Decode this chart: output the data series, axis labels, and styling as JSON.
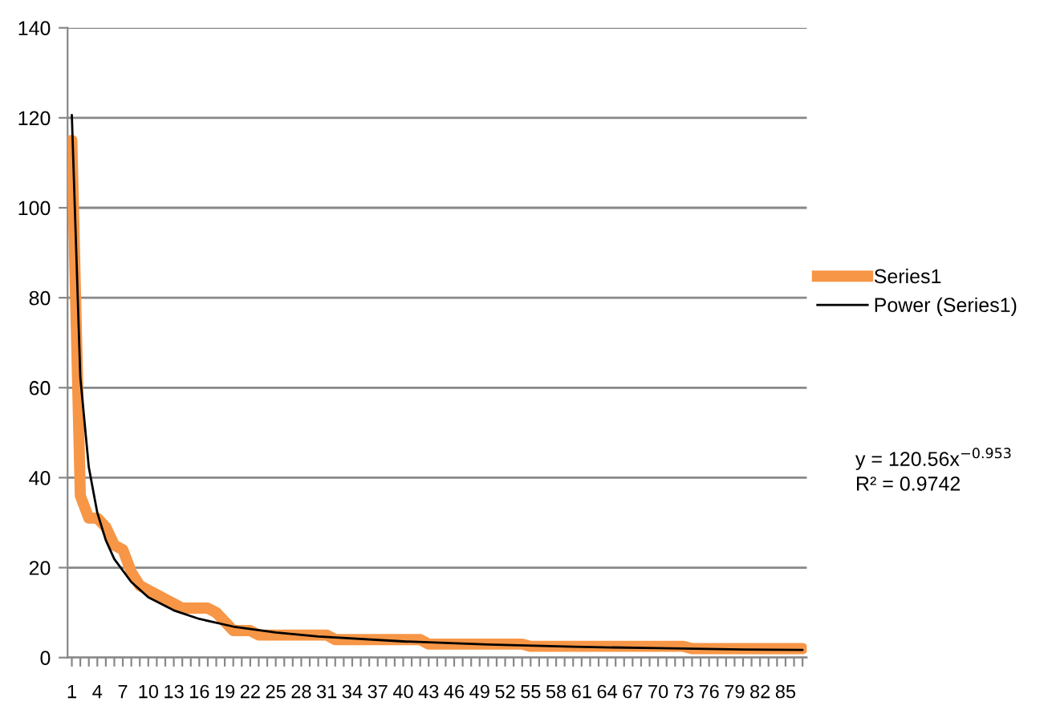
{
  "chart_data": {
    "type": "line",
    "x": [
      1,
      2,
      3,
      4,
      5,
      6,
      7,
      8,
      9,
      10,
      11,
      12,
      13,
      14,
      15,
      16,
      17,
      18,
      19,
      20,
      21,
      22,
      23,
      24,
      25,
      26,
      27,
      28,
      29,
      30,
      31,
      32,
      33,
      34,
      35,
      36,
      37,
      38,
      39,
      40,
      41,
      42,
      43,
      44,
      45,
      46,
      47,
      48,
      49,
      50,
      51,
      52,
      53,
      54,
      55,
      56,
      57,
      58,
      59,
      60,
      61,
      62,
      63,
      64,
      65,
      66,
      67,
      68,
      69,
      70,
      71,
      72,
      73,
      74,
      75,
      76,
      77,
      78,
      79,
      80,
      81,
      82,
      83,
      84,
      85,
      86,
      87
    ],
    "series": [
      {
        "name": "Series1",
        "color": "#f79646",
        "values": [
          115,
          36,
          31,
          31,
          29,
          25,
          24,
          19,
          16,
          15,
          14,
          13,
          12,
          11,
          11,
          11,
          11,
          10,
          8,
          6,
          6,
          6,
          5,
          5,
          5,
          5,
          5,
          5,
          5,
          5,
          5,
          4,
          4,
          4,
          4,
          4,
          4,
          4,
          4,
          4,
          4,
          4,
          3,
          3,
          3,
          3,
          3,
          3,
          3,
          3,
          3,
          3,
          3,
          3,
          2.5,
          2.5,
          2.5,
          2.5,
          2.5,
          2.5,
          2.5,
          2.5,
          2.5,
          2.5,
          2.5,
          2.5,
          2.5,
          2.5,
          2.5,
          2.5,
          2.5,
          2.5,
          2.5,
          2,
          2,
          2,
          2,
          2,
          2,
          2,
          2,
          2,
          2,
          2,
          2,
          2,
          2
        ]
      },
      {
        "name": "Power (Series1)",
        "color": "#000000",
        "x": [
          1,
          2,
          3,
          4,
          5,
          6,
          8,
          10,
          13,
          16,
          20,
          25,
          30,
          40,
          50,
          60,
          70,
          80,
          87
        ],
        "values": [
          120.6,
          62.3,
          42.3,
          32.2,
          26.1,
          21.9,
          16.8,
          13.4,
          10.5,
          8.6,
          6.9,
          5.6,
          4.7,
          3.6,
          2.9,
          2.4,
          2.1,
          1.8,
          1.7
        ]
      }
    ],
    "xlim": [
      0.5,
      87.5
    ],
    "xticks": [
      1,
      {
        "value": 2,
        "label": null
      },
      {
        "value": 3,
        "label": null
      },
      4,
      {
        "value": 5,
        "label": null
      },
      {
        "value": 6,
        "label": null
      },
      7,
      {
        "value": 8,
        "label": null
      },
      {
        "value": 9,
        "label": null
      },
      10,
      {
        "value": 11,
        "label": null
      },
      {
        "value": 12,
        "label": null
      },
      13,
      {
        "value": 14,
        "label": null
      },
      {
        "value": 15,
        "label": null
      },
      16,
      {
        "value": 17,
        "label": null
      },
      {
        "value": 18,
        "label": null
      },
      19,
      {
        "value": 20,
        "label": null
      },
      {
        "value": 21,
        "label": null
      },
      22,
      {
        "value": 23,
        "label": null
      },
      {
        "value": 24,
        "label": null
      },
      25,
      {
        "value": 26,
        "label": null
      },
      {
        "value": 27,
        "label": null
      },
      28,
      {
        "value": 29,
        "label": null
      },
      {
        "value": 30,
        "label": null
      },
      31,
      {
        "value": 32,
        "label": null
      },
      {
        "value": 33,
        "label": null
      },
      34,
      {
        "value": 35,
        "label": null
      },
      {
        "value": 36,
        "label": null
      },
      37,
      {
        "value": 38,
        "label": null
      },
      {
        "value": 39,
        "label": null
      },
      40,
      {
        "value": 41,
        "label": null
      },
      {
        "value": 42,
        "label": null
      },
      43,
      {
        "value": 44,
        "label": null
      },
      {
        "value": 45,
        "label": null
      },
      46,
      {
        "value": 47,
        "label": null
      },
      {
        "value": 48,
        "label": null
      },
      49,
      {
        "value": 50,
        "label": null
      },
      {
        "value": 51,
        "label": null
      },
      52,
      {
        "value": 53,
        "label": null
      },
      {
        "value": 54,
        "label": null
      },
      55,
      {
        "value": 56,
        "label": null
      },
      {
        "value": 57,
        "label": null
      },
      58,
      {
        "value": 59,
        "label": null
      },
      {
        "value": 60,
        "label": null
      },
      61,
      {
        "value": 62,
        "label": null
      },
      {
        "value": 63,
        "label": null
      },
      64,
      {
        "value": 65,
        "label": null
      },
      {
        "value": 66,
        "label": null
      },
      67,
      {
        "value": 68,
        "label": null
      },
      {
        "value": 69,
        "label": null
      },
      70,
      {
        "value": 71,
        "label": null
      },
      {
        "value": 72,
        "label": null
      },
      73,
      {
        "value": 74,
        "label": null
      },
      {
        "value": 75,
        "label": null
      },
      76,
      {
        "value": 77,
        "label": null
      },
      {
        "value": 78,
        "label": null
      },
      79,
      {
        "value": 80,
        "label": null
      },
      {
        "value": 81,
        "label": null
      },
      82,
      {
        "value": 83,
        "label": null
      },
      {
        "value": 84,
        "label": null
      },
      85,
      {
        "value": 86,
        "label": null
      },
      {
        "value": 87,
        "label": null
      }
    ],
    "ylim": [
      0,
      140
    ],
    "yticks": [
      0,
      20,
      40,
      60,
      80,
      100,
      120,
      140
    ],
    "grid": "y",
    "legend": "right",
    "annotations": [
      "y = 120.56x$^{−0.953}$\nR² = 0.9742"
    ]
  }
}
